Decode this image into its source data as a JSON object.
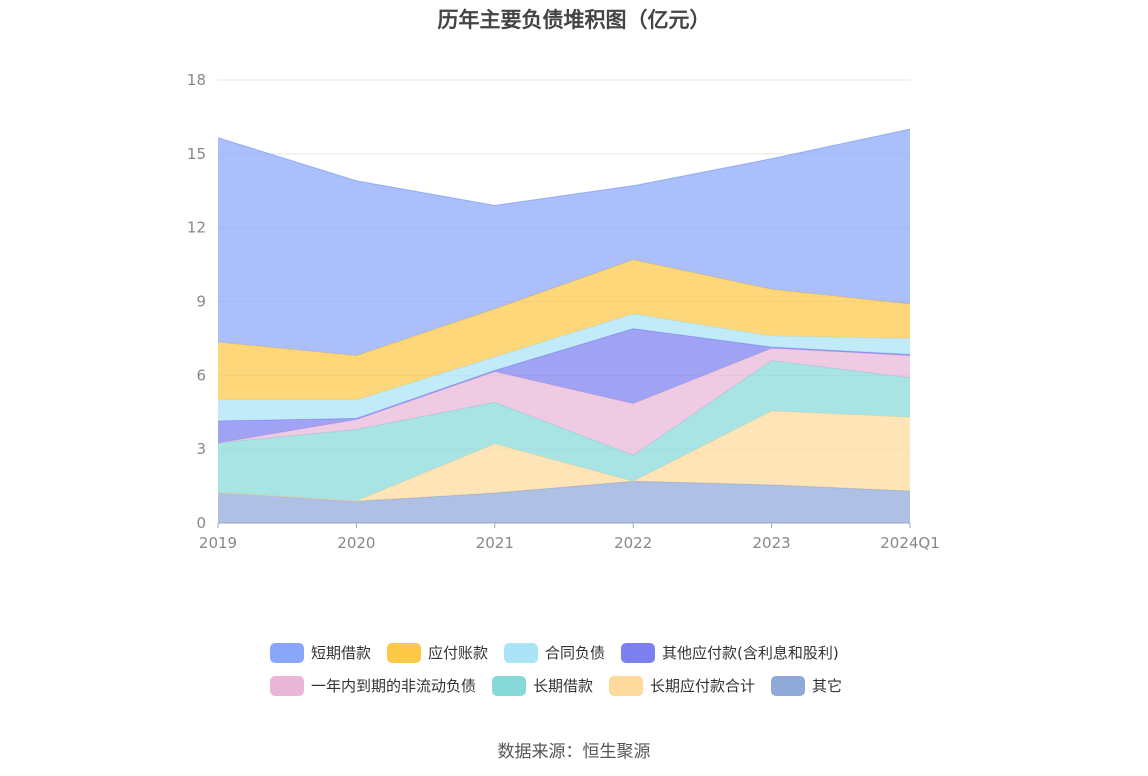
{
  "chart_data": {
    "type": "area",
    "stacked": true,
    "title": "历年主要负债堆积图（亿元）",
    "categories": [
      "2019",
      "2020",
      "2021",
      "2022",
      "2023",
      "2024Q1"
    ],
    "ylim": [
      0,
      18
    ],
    "yticks": [
      0,
      3,
      6,
      9,
      12,
      15,
      18
    ],
    "grid": true,
    "legend_position": "bottom",
    "series": [
      {
        "name": "其它",
        "color": "#8fa9d9",
        "values": [
          1.25,
          0.88,
          1.22,
          1.7,
          1.55,
          1.3
        ]
      },
      {
        "name": "长期应付款合计",
        "color": "#fdd99b",
        "values": [
          0.0,
          0.02,
          2.0,
          0.0,
          3.0,
          3.0
        ]
      },
      {
        "name": "长期借款",
        "color": "#86d9d9",
        "values": [
          2.0,
          2.9,
          1.68,
          1.05,
          2.05,
          1.6
        ]
      },
      {
        "name": "一年内到期的非流动负债",
        "color": "#e9b6d8",
        "values": [
          0.0,
          0.4,
          1.25,
          2.1,
          0.5,
          0.9
        ]
      },
      {
        "name": "其他应付款(含利息和股利)",
        "color": "#7b7ff0",
        "values": [
          0.9,
          0.05,
          0.05,
          3.05,
          0.05,
          0.05
        ]
      },
      {
        "name": "合同负债",
        "color": "#abe3f7",
        "values": [
          0.85,
          0.75,
          0.55,
          0.6,
          0.45,
          0.65
        ]
      },
      {
        "name": "应付账款",
        "color": "#fcc846",
        "values": [
          2.35,
          1.8,
          1.95,
          2.2,
          1.9,
          1.4
        ]
      },
      {
        "name": "短期借款",
        "color": "#8aa6f8",
        "values": [
          8.3,
          7.1,
          4.2,
          3.0,
          5.3,
          7.1
        ]
      }
    ],
    "legend": [
      {
        "name": "短期借款",
        "color": "#8aa6f8"
      },
      {
        "name": "应付账款",
        "color": "#fcc846"
      },
      {
        "name": "合同负债",
        "color": "#abe3f7"
      },
      {
        "name": "其他应付款(含利息和股利)",
        "color": "#7b7ff0"
      },
      {
        "name": "一年内到期的非流动负债",
        "color": "#e9b6d8"
      },
      {
        "name": "长期借款",
        "color": "#86d9d9"
      },
      {
        "name": "长期应付款合计",
        "color": "#fdd99b"
      },
      {
        "name": "其它",
        "color": "#8fa9d9"
      }
    ],
    "source": "数据来源：恒生聚源"
  }
}
